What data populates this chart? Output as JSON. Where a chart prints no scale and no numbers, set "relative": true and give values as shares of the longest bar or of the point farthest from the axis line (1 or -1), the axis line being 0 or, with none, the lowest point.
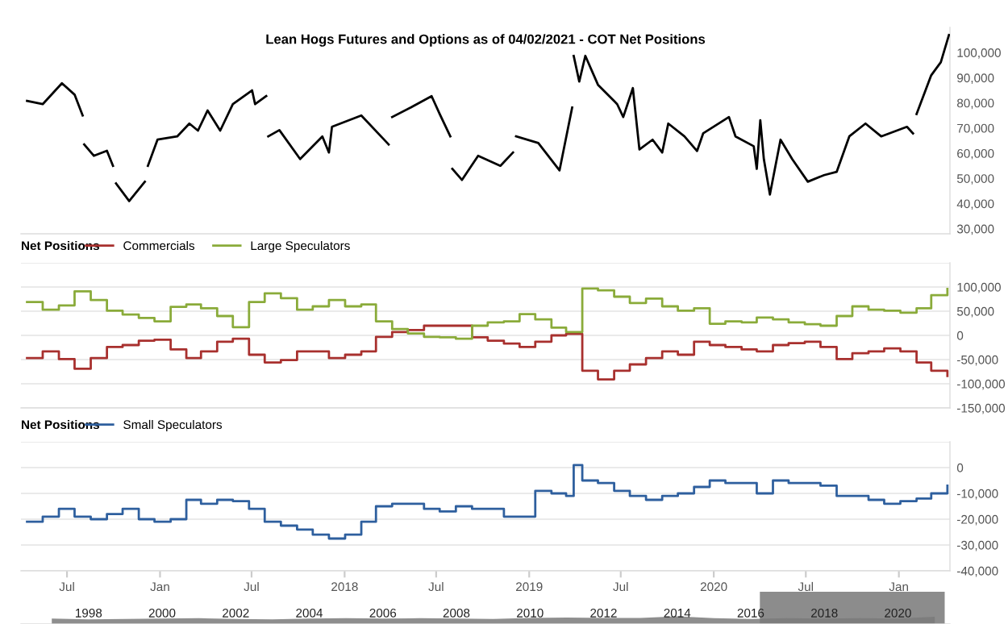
{
  "chart_data": [
    {
      "type": "line",
      "title": "Lean Hogs Futures and Options as of 04/02/2021 - COT Net Positions",
      "x": [
        "2016-04-13",
        "2016-05-14",
        "2016-06-21",
        "2016-07-16",
        "2016-08-01",
        "2016-08-02",
        "2016-08-04",
        "2016-08-23",
        "2016-09-18",
        "2016-09-30",
        "2016-10-01",
        "2016-10-06",
        "2016-11-01",
        "2016-12-02",
        "2016-12-03",
        "2016-12-08",
        "2016-12-27",
        "2017-02-04",
        "2017-02-28",
        "2017-03-17",
        "2017-04-05",
        "2017-04-30",
        "2017-05-25",
        "2017-07-02",
        "2017-07-08",
        "2017-07-30",
        "2017-07-31",
        "2017-08-03",
        "2017-08-25",
        "2017-10-05",
        "2017-11-18",
        "2017-12-01",
        "2017-12-07",
        "2018-02-03",
        "2018-03-29",
        "2018-03-30",
        "2018-04-05",
        "2018-05-12",
        "2018-06-22",
        "2018-07-08",
        "2018-07-29",
        "2018-07-30",
        "2018-08-02",
        "2018-08-21",
        "2018-09-22",
        "2018-11-05",
        "2018-11-30",
        "2018-12-01",
        "2018-12-06",
        "2019-01-19",
        "2019-03-02",
        "2019-03-27",
        "2019-03-28",
        "2019-03-30",
        "2019-04-10",
        "2019-04-22",
        "2019-05-17",
        "2019-06-24",
        "2019-07-06",
        "2019-07-25",
        "2019-08-07",
        "2019-09-02",
        "2019-09-21",
        "2019-10-03",
        "2019-11-04",
        "2019-11-29",
        "2019-12-11",
        "2020-01-31",
        "2020-02-13",
        "2020-03-20",
        "2020-03-26",
        "2020-04-02",
        "2020-04-09",
        "2020-04-21",
        "2020-05-12",
        "2020-06-04",
        "2020-07-05",
        "2020-08-06",
        "2020-08-31",
        "2020-09-25",
        "2020-10-27",
        "2020-11-27",
        "2021-01-17",
        "2021-01-29",
        "2021-01-30",
        "2021-02-05",
        "2021-03-06",
        "2021-03-25",
        "2021-04-10"
      ],
      "series": [
        {
          "color": "#000000",
          "values": [
            80800,
            79500,
            87800,
            83300,
            75000,
            null,
            63500,
            59000,
            61000,
            55000,
            null,
            48000,
            41000,
            48700,
            null,
            55000,
            65400,
            66700,
            71800,
            69000,
            77000,
            69000,
            79500,
            85000,
            79500,
            82700,
            null,
            66700,
            69200,
            57700,
            66700,
            60300,
            70500,
            75000,
            63500,
            null,
            74400,
            78200,
            82700,
            75600,
            66700,
            null,
            53800,
            49400,
            59000,
            55000,
            60300,
            null,
            66700,
            64100,
            53200,
            78200,
            null,
            98700,
            88500,
            98700,
            87200,
            79500,
            74400,
            85900,
            61500,
            65400,
            60300,
            71800,
            66700,
            60900,
            67900,
            74400,
            66700,
            62800,
            53800,
            73100,
            57700,
            43600,
            65400,
            57700,
            48700,
            51300,
            52600,
            66700,
            71800,
            66700,
            70500,
            67900,
            null,
            75600,
            91000,
            96200,
            107000
          ]
        }
      ],
      "xlim": [
        "2016-04-01",
        "2021-04-12"
      ],
      "ylim": [
        28000,
        110000
      ],
      "yticks": [
        {
          "value": 30000,
          "label": "30,000"
        },
        {
          "value": 40000,
          "label": "40,000"
        },
        {
          "value": 50000,
          "label": "50,000"
        },
        {
          "value": 60000,
          "label": "60,000"
        },
        {
          "value": 70000,
          "label": "70,000"
        },
        {
          "value": 80000,
          "label": "80,000"
        },
        {
          "value": 90000,
          "label": "90,000"
        },
        {
          "value": 100000,
          "label": "100,000"
        }
      ],
      "grid": false,
      "tick_labels": "y"
    },
    {
      "type": "step",
      "legend_title": "Net Positions",
      "legend": "top left",
      "grid": "y",
      "tick_labels": "y",
      "x": [
        "2016-04-13",
        "2016-05-14",
        "2016-06-15",
        "2016-07-16",
        "2016-08-17",
        "2016-09-18",
        "2016-10-19",
        "2016-11-20",
        "2016-12-21",
        "2017-01-22",
        "2017-02-22",
        "2017-03-23",
        "2017-04-24",
        "2017-05-25",
        "2017-06-26",
        "2017-07-27",
        "2017-08-28",
        "2017-09-29",
        "2017-10-30",
        "2017-12-01",
        "2018-01-02",
        "2018-02-03",
        "2018-03-04",
        "2018-04-05",
        "2018-05-06",
        "2018-06-07",
        "2018-07-08",
        "2018-08-09",
        "2018-09-10",
        "2018-10-11",
        "2018-11-12",
        "2018-12-13",
        "2019-01-13",
        "2019-02-14",
        "2019-03-15",
        "2019-04-16",
        "2019-05-17",
        "2019-06-18",
        "2019-07-19",
        "2019-08-20",
        "2019-09-21",
        "2019-10-22",
        "2019-11-23",
        "2019-12-24",
        "2020-01-24",
        "2020-02-25",
        "2020-03-26",
        "2020-04-27",
        "2020-05-28",
        "2020-06-29",
        "2020-07-30",
        "2020-08-31",
        "2020-10-01",
        "2020-11-02",
        "2020-12-03",
        "2021-01-04",
        "2021-02-05",
        "2021-03-06",
        "2021-04-07"
      ],
      "series": [
        {
          "name": "Commercials",
          "color": "#a8302e",
          "values": [
            -47000,
            -33000,
            -49000,
            -69000,
            -47000,
            -24000,
            -20000,
            -11000,
            -9000,
            -29000,
            -47000,
            -33000,
            -13000,
            -7000,
            -40000,
            -56000,
            -51000,
            -33000,
            -33000,
            -47000,
            -40000,
            -33000,
            -3000,
            7000,
            11000,
            20000,
            20000,
            20000,
            -4000,
            -11000,
            -17000,
            -24000,
            -13000,
            0,
            3000,
            -73000,
            -91000,
            -73000,
            -60000,
            -47000,
            -33000,
            -40000,
            -13000,
            -20000,
            -24000,
            -29000,
            -33000,
            -20000,
            -16000,
            -13000,
            -24000,
            -49000,
            -37000,
            -33000,
            -27000,
            -33000,
            -56000,
            -73000,
            -84000
          ]
        },
        {
          "name": "Large Speculators",
          "color": "#8aab3a",
          "values": [
            69000,
            53000,
            62000,
            91000,
            73000,
            51000,
            43000,
            36000,
            29000,
            59000,
            64000,
            56000,
            40000,
            17000,
            69000,
            87000,
            77000,
            53000,
            60000,
            73000,
            60000,
            64000,
            29000,
            13000,
            4000,
            -3000,
            -4000,
            -7000,
            20000,
            27000,
            29000,
            44000,
            33000,
            16000,
            7000,
            97000,
            93000,
            80000,
            67000,
            76000,
            60000,
            51000,
            56000,
            24000,
            29000,
            27000,
            37000,
            33000,
            27000,
            23000,
            20000,
            40000,
            60000,
            53000,
            51000,
            47000,
            56000,
            83000,
            96000
          ]
        }
      ],
      "xlim": [
        "2016-04-01",
        "2021-04-12"
      ],
      "ylim": [
        -150000,
        150000
      ],
      "yticks": [
        {
          "value": -150000,
          "label": "-150,000"
        },
        {
          "value": -100000,
          "label": "-100,000"
        },
        {
          "value": -50000,
          "label": "-50,000"
        },
        0,
        {
          "value": 50000,
          "label": "50,000"
        },
        {
          "value": 100000,
          "label": "100,000"
        },
        {
          "value": 150000,
          "label": null
        }
      ]
    },
    {
      "type": "step",
      "legend_title": "Net Positions",
      "legend": "top left",
      "grid": "y",
      "x": [
        "2016-04-13",
        "2016-05-14",
        "2016-06-15",
        "2016-07-16",
        "2016-08-17",
        "2016-09-18",
        "2016-10-19",
        "2016-11-20",
        "2016-12-21",
        "2017-01-22",
        "2017-02-22",
        "2017-03-23",
        "2017-04-24",
        "2017-05-25",
        "2017-06-26",
        "2017-07-27",
        "2017-08-28",
        "2017-09-29",
        "2017-10-30",
        "2017-12-01",
        "2018-01-02",
        "2018-02-03",
        "2018-03-04",
        "2018-04-05",
        "2018-05-06",
        "2018-06-07",
        "2018-07-08",
        "2018-08-09",
        "2018-09-10",
        "2018-10-11",
        "2018-11-12",
        "2018-12-13",
        "2019-01-13",
        "2019-02-14",
        "2019-03-15",
        "2019-03-30",
        "2019-04-16",
        "2019-05-17",
        "2019-06-18",
        "2019-07-19",
        "2019-08-20",
        "2019-09-21",
        "2019-10-22",
        "2019-11-23",
        "2019-12-24",
        "2020-01-24",
        "2020-02-25",
        "2020-03-26",
        "2020-04-27",
        "2020-05-28",
        "2020-06-29",
        "2020-07-30",
        "2020-08-31",
        "2020-10-01",
        "2020-11-02",
        "2020-12-03",
        "2021-01-04",
        "2021-02-05",
        "2021-03-06",
        "2021-04-07"
      ],
      "series": [
        {
          "name": "Small Speculators",
          "color": "#2e5f9e",
          "values": [
            -21000,
            -19000,
            -16000,
            -19000,
            -20000,
            -18000,
            -16000,
            -20000,
            -21000,
            -20000,
            -12500,
            -14000,
            -12500,
            -13000,
            -16000,
            -21000,
            -22500,
            -24000,
            -26000,
            -27500,
            -26000,
            -21000,
            -15000,
            -14000,
            -14000,
            -16000,
            -17000,
            -15000,
            -16000,
            -16000,
            -19000,
            -19000,
            -9000,
            -10000,
            -11000,
            1000,
            -5000,
            -6000,
            -9000,
            -11000,
            -12500,
            -11000,
            -10000,
            -7500,
            -5000,
            -6000,
            -6000,
            -10000,
            -5000,
            -6000,
            -6000,
            -7000,
            -11000,
            -11000,
            -12500,
            -14000,
            -13000,
            -12000,
            -10000,
            -7000
          ]
        }
      ],
      "xlim": [
        "2016-04-01",
        "2021-04-12"
      ],
      "xticks": [
        {
          "value": "2016-07-01",
          "label": "Jul"
        },
        {
          "value": "2017-01-01",
          "label": "Jan"
        },
        {
          "value": "2017-07-01",
          "label": "Jul"
        },
        {
          "value": "2018-01-01",
          "label": "2018"
        },
        {
          "value": "2018-07-01",
          "label": "Jul"
        },
        {
          "value": "2019-01-01",
          "label": "2019"
        },
        {
          "value": "2019-07-01",
          "label": "Jul"
        },
        {
          "value": "2020-01-01",
          "label": "2020"
        },
        {
          "value": "2020-07-01",
          "label": "Jul"
        },
        {
          "value": "2021-01-01",
          "label": "Jan"
        }
      ],
      "ylim": [
        -40000,
        10000
      ],
      "yticks": [
        {
          "value": -40000,
          "label": "-40,000"
        },
        {
          "value": -30000,
          "label": "-30,000"
        },
        {
          "value": -20000,
          "label": "-20,000"
        },
        {
          "value": -10000,
          "label": "-10,000"
        },
        0,
        {
          "value": 10000,
          "label": null
        }
      ]
    },
    {
      "type": "area",
      "relative": true,
      "tick_labels": "x",
      "x": [
        "1997",
        "1998",
        "1999",
        "2000",
        "2001",
        "2002",
        "2003",
        "2004",
        "2005",
        "2006",
        "2007",
        "2008",
        "2009",
        "2010",
        "2011",
        "2012",
        "2013",
        "2014",
        "2015",
        "2016",
        "2017",
        "2018",
        "2019",
        "2020",
        "2021"
      ],
      "series": [
        {
          "color": "#7a7a7a",
          "values": [
            0.7,
            0.6,
            0.65,
            0.7,
            0.75,
            0.65,
            0.6,
            0.7,
            0.75,
            0.7,
            0.75,
            0.7,
            0.65,
            0.8,
            0.85,
            0.8,
            0.8,
            1.0,
            0.75,
            0.65,
            0.75,
            0.7,
            0.75,
            0.7,
            0.95
          ]
        }
      ],
      "xlim": [
        "1996-03-01",
        "2021-06-01"
      ],
      "xticks": [
        {
          "value": "1998",
          "label": "1998"
        },
        {
          "value": "2000",
          "label": "2000"
        },
        {
          "value": "2002",
          "label": "2002"
        },
        {
          "value": "2004",
          "label": "2004"
        },
        {
          "value": "2006",
          "label": "2006"
        },
        {
          "value": "2008",
          "label": "2008"
        },
        {
          "value": "2010",
          "label": "2010"
        },
        {
          "value": "2012",
          "label": "2012"
        },
        {
          "value": "2014",
          "label": "2014"
        },
        {
          "value": "2016",
          "label": "2016"
        },
        {
          "value": "2018",
          "label": "2018"
        },
        {
          "value": "2020",
          "label": "2020"
        }
      ],
      "bands": [
        {
          "axis": "x",
          "from": "2016-04-01",
          "to": "2021-04-10",
          "color": "#8c8c8c"
        }
      ]
    }
  ]
}
